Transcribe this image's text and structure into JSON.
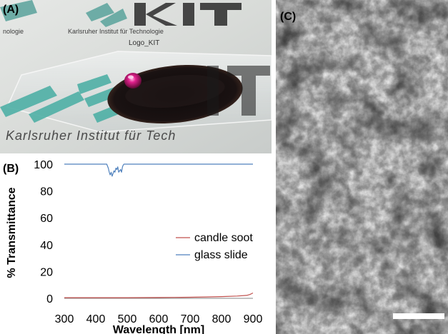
{
  "panel_labels": {
    "a": "(A)",
    "b": "(B)",
    "c": "(C)"
  },
  "photo": {
    "logo_caption": "Logo_KIT",
    "institute_text_top": "Karlsruher Institut für Technologie",
    "institute_text_bottom": "Karlsruher Institut für Tech",
    "logo_letters": "KIT",
    "left_fragment": "nologie"
  },
  "chart_data": {
    "type": "line",
    "xlabel": "Wavelength [nm]",
    "ylabel": "% Transmittance",
    "xlim": [
      300,
      900
    ],
    "ylim": [
      0,
      100
    ],
    "xticks": [
      300,
      400,
      500,
      600,
      700,
      800,
      900
    ],
    "yticks": [
      0,
      20,
      40,
      60,
      80,
      100
    ],
    "grid": false,
    "legend_position": "right",
    "series": [
      {
        "name": "candle soot",
        "color": "#c0504d",
        "x": [
          300,
          400,
          500,
          600,
          650,
          700,
          750,
          800,
          850,
          880,
          890,
          895,
          900
        ],
        "y": [
          0.5,
          0.5,
          0.5,
          0.6,
          0.7,
          0.8,
          1.0,
          1.3,
          1.7,
          2.2,
          2.8,
          3.4,
          4.0
        ]
      },
      {
        "name": "glass slide",
        "color": "#4f81bd",
        "x": [
          300,
          435,
          440,
          443,
          446,
          449,
          452,
          455,
          458,
          461,
          464,
          467,
          470,
          473,
          476,
          479,
          482,
          485,
          488,
          490,
          900
        ],
        "y": [
          100,
          100,
          97,
          94,
          92,
          94,
          91,
          93,
          95,
          94,
          97,
          96,
          98,
          94,
          95,
          96,
          94,
          98,
          99.5,
          100,
          100
        ]
      }
    ]
  },
  "scale_bar_color": "#ffffff"
}
